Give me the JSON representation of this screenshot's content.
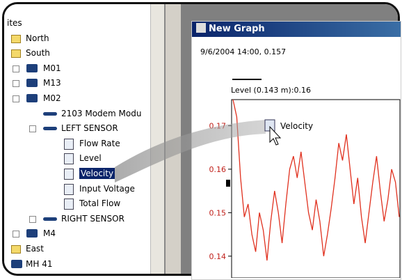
{
  "tree": {
    "items": [
      "ites",
      "North",
      "South",
      "M01",
      "M13",
      "M02",
      "2103 Modem Modu",
      "LEFT SENSOR",
      "Flow Rate",
      "Level",
      "Velocity",
      "Input Voltage",
      "Total Flow",
      "RIGHT SENSOR",
      "M4",
      "East",
      "MH 41"
    ]
  },
  "graph": {
    "title": "New Graph",
    "cursor_readout": "9/6/2004 14:00, 0.157",
    "legend": "Level (0.143 m):0.16",
    "drop_label": "Velocity",
    "ylim": [
      0.135,
      0.176
    ],
    "yticks": [
      0.17,
      0.16,
      0.15,
      0.14
    ],
    "color": "#e0301e",
    "values": [
      0.176,
      0.172,
      0.158,
      0.149,
      0.152,
      0.145,
      0.141,
      0.15,
      0.146,
      0.139,
      0.148,
      0.155,
      0.15,
      0.143,
      0.152,
      0.16,
      0.163,
      0.158,
      0.164,
      0.157,
      0.15,
      0.146,
      0.153,
      0.148,
      0.14,
      0.145,
      0.151,
      0.158,
      0.166,
      0.162,
      0.168,
      0.16,
      0.152,
      0.158,
      0.149,
      0.143,
      0.15,
      0.157,
      0.163,
      0.155,
      0.148,
      0.153,
      0.16,
      0.157,
      0.149
    ]
  }
}
